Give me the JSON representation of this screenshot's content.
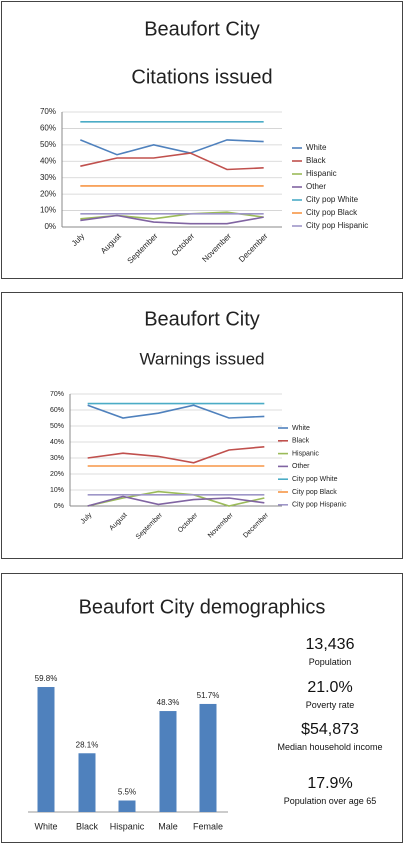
{
  "chart_data": [
    {
      "type": "line",
      "title": "Beaufort City",
      "subtitle": "Citations issued",
      "categories": [
        "July",
        "August",
        "September",
        "October",
        "November",
        "December"
      ],
      "series": [
        {
          "name": "White",
          "color": "#4f81bd",
          "values": [
            53,
            44,
            50,
            45,
            53,
            52
          ]
        },
        {
          "name": "Black",
          "color": "#c0504d",
          "values": [
            37,
            42,
            42,
            45,
            35,
            36
          ]
        },
        {
          "name": "Hispanic",
          "color": "#9bbb59",
          "values": [
            5,
            7,
            5,
            8,
            9,
            6
          ]
        },
        {
          "name": "Other",
          "color": "#8064a2",
          "values": [
            4,
            7,
            3,
            2,
            2,
            6
          ]
        },
        {
          "name": "City pop White",
          "color": "#4bacc6",
          "values": [
            64,
            64,
            64,
            64,
            64,
            64
          ]
        },
        {
          "name": "City pop Black",
          "color": "#f79646",
          "values": [
            25,
            25,
            25,
            25,
            25,
            25
          ]
        },
        {
          "name": "City pop Hispanic",
          "color": "#9e96c8",
          "values": [
            8,
            8,
            8,
            8,
            8,
            8
          ]
        }
      ],
      "ylim": [
        0,
        70
      ],
      "yticks": [
        {
          "value": 0,
          "label": "0%"
        },
        {
          "value": 10,
          "label": "10%"
        },
        {
          "value": 20,
          "label": "20%"
        },
        {
          "value": 30,
          "label": "30%"
        },
        {
          "value": 40,
          "label": "40%"
        },
        {
          "value": 50,
          "label": "50%"
        },
        {
          "value": 60,
          "label": "60%"
        },
        {
          "value": 70,
          "label": "70%"
        }
      ],
      "grid": true,
      "legend": "right"
    },
    {
      "type": "line",
      "title": "Beaufort City",
      "subtitle": "Warnings issued",
      "categories": [
        "July",
        "August",
        "September",
        "October",
        "November",
        "December"
      ],
      "series": [
        {
          "name": "White",
          "color": "#4f81bd",
          "values": [
            63,
            55,
            58,
            63,
            55,
            56
          ]
        },
        {
          "name": "Black",
          "color": "#c0504d",
          "values": [
            30,
            33,
            31,
            27,
            35,
            37
          ]
        },
        {
          "name": "Hispanic",
          "color": "#9bbb59",
          "values": [
            0,
            5,
            9,
            7,
            0,
            5
          ]
        },
        {
          "name": "Other",
          "color": "#8064a2",
          "values": [
            0,
            6,
            1,
            4,
            5,
            2
          ]
        },
        {
          "name": "City pop White",
          "color": "#4bacc6",
          "values": [
            64,
            64,
            64,
            64,
            64,
            64
          ]
        },
        {
          "name": "City pop Black",
          "color": "#f79646",
          "values": [
            25,
            25,
            25,
            25,
            25,
            25
          ]
        },
        {
          "name": "City pop Hispanic",
          "color": "#9e96c8",
          "values": [
            7,
            7,
            7,
            7,
            7,
            7
          ]
        }
      ],
      "ylim": [
        0,
        70
      ],
      "yticks": [
        {
          "value": 0,
          "label": "0%"
        },
        {
          "value": 10,
          "label": "10%"
        },
        {
          "value": 20,
          "label": "20%"
        },
        {
          "value": 30,
          "label": "30%"
        },
        {
          "value": 40,
          "label": "40%"
        },
        {
          "value": 50,
          "label": "50%"
        },
        {
          "value": 60,
          "label": "60%"
        },
        {
          "value": 70,
          "label": "70%"
        }
      ],
      "grid": true,
      "legend": "right"
    },
    {
      "type": "bar",
      "title": "Beaufort City demographics",
      "categories": [
        "White",
        "Black",
        "Hispanic",
        "Male",
        "Female"
      ],
      "values": [
        59.8,
        28.1,
        5.5,
        48.3,
        51.7
      ],
      "value_labels": [
        "59.8%",
        "28.1%",
        "5.5%",
        "48.3%",
        "51.7%"
      ],
      "color": "#4f81bd",
      "annotations": [
        {
          "text": "13,436",
          "label": "Population"
        },
        {
          "text": "21.0%",
          "label": "Poverty rate"
        },
        {
          "text": "$54,873",
          "label": "Median household income"
        },
        {
          "text": "17.9%",
          "label": "Population over age 65"
        }
      ]
    }
  ]
}
